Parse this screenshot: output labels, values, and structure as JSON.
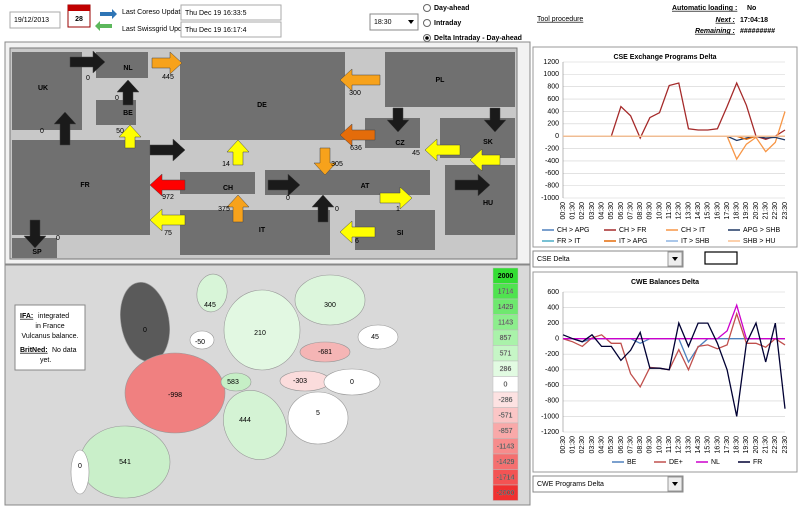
{
  "header": {
    "date": "19/12/2013",
    "calendar_day": "28",
    "last_coreso_update_label": "Last Coreso Update",
    "last_coreso_update": "Thu Dec 19 16:33:5",
    "last_swissgrid_update_label": "Last Swissgrid Update",
    "last_swissgrid_update": "Thu Dec 19 16:17:4",
    "time_select": "18:30",
    "modes": [
      "Day-ahead",
      "Intraday",
      "Delta Intraday - Day-ahead"
    ],
    "selected_mode": 2,
    "tool_procedure": "Tool procedure",
    "automatic_loading_label": "Automatic loading :",
    "automatic_loading": "No",
    "next_label": "Next :",
    "next": "17:04:18",
    "remaining_label": "Remaining :",
    "remaining": "#########"
  },
  "map_panel": {
    "countries": [
      "UK",
      "NL",
      "BE",
      "DE",
      "PL",
      "FR",
      "CH",
      "CZ",
      "SK",
      "AT",
      "HU",
      "IT",
      "SI",
      "SP"
    ],
    "flows": [
      0,
      445,
      0,
      300,
      0,
      50,
      636,
      45,
      14,
      305,
      972,
      0,
      375,
      0,
      1,
      75,
      0,
      6
    ]
  },
  "balance_map": {
    "note": {
      "ifa_label": "IFA:",
      "ifa_text": [
        "integrated",
        "in France",
        "Vulcanus balance."
      ],
      "britned_label": "BritNed:",
      "britned_text": [
        "No data",
        "yet."
      ]
    },
    "countries": [
      {
        "value": 0,
        "color": "#5a5a5a"
      },
      {
        "value": 445,
        "color": "#d8f5d8"
      },
      {
        "value": -50,
        "color": "#ffffff"
      },
      {
        "value": 210,
        "color": "#e2f8e2"
      },
      {
        "value": 300,
        "color": "#dcf6dc"
      },
      {
        "value": 45,
        "color": "#ffffff"
      },
      {
        "value": -681,
        "color": "#f5b5b5"
      },
      {
        "value": -998,
        "color": "#f08080"
      },
      {
        "value": 583,
        "color": "#c6efc6"
      },
      {
        "value": -303,
        "color": "#fbdcdc"
      },
      {
        "value": 0,
        "color": "#ffffff"
      },
      {
        "value": 444,
        "color": "#d4f3d4"
      },
      {
        "value": 5,
        "color": "#ffffff"
      },
      {
        "value": 541,
        "color": "#c9efc9"
      },
      {
        "value": 0,
        "color": "#ffffff"
      }
    ],
    "scale": [
      {
        "value": 2000,
        "color": "#33dd33"
      },
      {
        "value": 1714,
        "color": "#4fe34f"
      },
      {
        "value": 1429,
        "color": "#6ee86e"
      },
      {
        "value": 1143,
        "color": "#8cee8c"
      },
      {
        "value": 857,
        "color": "#aaf2aa"
      },
      {
        "value": 571,
        "color": "#c6f6c6"
      },
      {
        "value": 286,
        "color": "#e2fbe2"
      },
      {
        "value": 0,
        "color": "#ffffff"
      },
      {
        "value": -286,
        "color": "#fde2e2"
      },
      {
        "value": -571,
        "color": "#fbc6c6"
      },
      {
        "value": -857,
        "color": "#f9a9a9"
      },
      {
        "value": -1143,
        "color": "#f78c8c"
      },
      {
        "value": -1429,
        "color": "#f56f6f"
      },
      {
        "value": -1714,
        "color": "#f35353"
      },
      {
        "value": -2000,
        "color": "#f03030"
      }
    ]
  },
  "chart_data": [
    {
      "type": "line",
      "title": "CSE Exchange Programs Delta",
      "dropdown": "CSE Delta",
      "categories": [
        "00:30",
        "01:30",
        "02:30",
        "03:30",
        "04:30",
        "05:30",
        "06:30",
        "07:30",
        "08:30",
        "09:30",
        "10:30",
        "11:30",
        "12:30",
        "13:30",
        "14:30",
        "15:30",
        "16:30",
        "17:30",
        "18:30",
        "19:30",
        "20:30",
        "21:30",
        "22:30",
        "23:30"
      ],
      "ylim": [
        -1000,
        1200
      ],
      "yticks": [
        -1000,
        -800,
        -600,
        -400,
        -200,
        0,
        200,
        400,
        600,
        800,
        1000,
        1200
      ],
      "grid": true,
      "series": [
        {
          "name": "CH > APG",
          "color": "#4f81bd",
          "values": [
            0,
            0,
            0,
            0,
            0,
            0,
            0,
            0,
            0,
            0,
            0,
            0,
            0,
            0,
            0,
            0,
            0,
            0,
            0,
            0,
            0,
            0,
            0,
            0
          ]
        },
        {
          "name": "CH > FR",
          "color": "#a52a2a",
          "values": [
            0,
            0,
            0,
            0,
            0,
            0,
            480,
            330,
            -30,
            300,
            380,
            820,
            860,
            120,
            100,
            100,
            120,
            480,
            860,
            500,
            0,
            -50,
            0,
            100
          ]
        },
        {
          "name": "CH > IT",
          "color": "#f79646",
          "values": [
            0,
            0,
            0,
            0,
            0,
            0,
            0,
            0,
            0,
            0,
            0,
            0,
            0,
            0,
            0,
            0,
            0,
            0,
            -370,
            -130,
            -20,
            -250,
            -100,
            400
          ]
        },
        {
          "name": "APG > SHB",
          "color": "#1f3864",
          "values": [
            0,
            0,
            0,
            0,
            0,
            0,
            0,
            0,
            0,
            0,
            0,
            0,
            0,
            0,
            0,
            0,
            0,
            0,
            -70,
            -30,
            0,
            -30,
            -20,
            -60
          ]
        },
        {
          "name": "FR > IT",
          "color": "#4bacc6",
          "values": [
            0,
            0,
            0,
            0,
            0,
            0,
            0,
            0,
            0,
            0,
            0,
            0,
            0,
            0,
            0,
            0,
            0,
            0,
            0,
            0,
            0,
            0,
            0,
            0
          ]
        },
        {
          "name": "IT > APG",
          "color": "#e46c0a",
          "values": [
            0,
            0,
            0,
            0,
            0,
            0,
            0,
            0,
            0,
            0,
            0,
            0,
            0,
            0,
            0,
            0,
            0,
            0,
            0,
            -50,
            0,
            0,
            0,
            0
          ]
        },
        {
          "name": "IT > SHB",
          "color": "#8db4e2",
          "values": [
            0,
            0,
            0,
            0,
            0,
            0,
            0,
            0,
            0,
            0,
            0,
            0,
            0,
            0,
            0,
            0,
            0,
            0,
            0,
            0,
            0,
            0,
            0,
            0
          ]
        },
        {
          "name": "SHB > HU",
          "color": "#fac090",
          "values": [
            0,
            0,
            0,
            0,
            0,
            0,
            0,
            0,
            0,
            0,
            0,
            0,
            0,
            0,
            0,
            0,
            0,
            0,
            0,
            0,
            0,
            0,
            0,
            0
          ]
        }
      ]
    },
    {
      "type": "line",
      "title": "CWE Balances Delta",
      "dropdown": "CWE Programs Delta",
      "categories": [
        "00:30",
        "01:30",
        "02:30",
        "03:30",
        "04:30",
        "05:30",
        "06:30",
        "07:30",
        "08:30",
        "09:30",
        "10:30",
        "11:30",
        "12:30",
        "13:30",
        "14:30",
        "15:30",
        "16:30",
        "17:30",
        "18:30",
        "19:30",
        "20:30",
        "21:30",
        "22:30",
        "23:30"
      ],
      "ylim": [
        -1200,
        600
      ],
      "yticks": [
        -1200,
        -1000,
        -800,
        -600,
        -400,
        -200,
        0,
        200,
        400,
        600
      ],
      "grid": true,
      "series": [
        {
          "name": "BE",
          "color": "#4f81bd",
          "values": [
            0,
            0,
            -40,
            0,
            0,
            0,
            0,
            0,
            -60,
            0,
            0,
            0,
            0,
            -300,
            -110,
            0,
            0,
            0,
            0,
            0,
            0,
            0,
            0,
            0
          ]
        },
        {
          "name": "DE+",
          "color": "#c0504d",
          "values": [
            0,
            -40,
            -100,
            10,
            50,
            -60,
            -60,
            -450,
            -620,
            -370,
            -380,
            -400,
            -140,
            -400,
            -100,
            -80,
            -130,
            -80,
            320,
            -60,
            -60,
            -110,
            0,
            -80
          ]
        },
        {
          "name": "NL",
          "color": "#cc00cc",
          "values": [
            0,
            0,
            0,
            0,
            0,
            0,
            0,
            0,
            0,
            0,
            0,
            0,
            0,
            0,
            0,
            0,
            0,
            100,
            430,
            0,
            0,
            0,
            0,
            0
          ]
        },
        {
          "name": "FR",
          "color": "#000033",
          "values": [
            50,
            0,
            -40,
            50,
            -100,
            -100,
            -280,
            -150,
            80,
            -380,
            -380,
            -400,
            200,
            -100,
            200,
            200,
            -60,
            -400,
            -1000,
            -60,
            200,
            -300,
            200,
            -900
          ]
        }
      ]
    }
  ]
}
